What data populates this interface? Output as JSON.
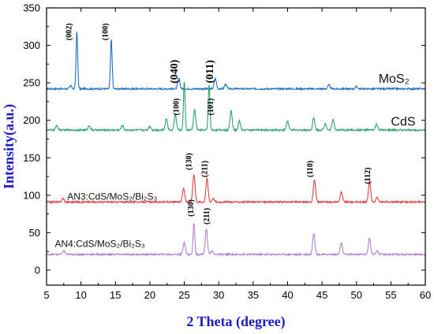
{
  "chart_data": {
    "type": "line",
    "title": "",
    "xlabel": "2 Theta (degree)",
    "ylabel": "Intensity(a.u.)",
    "xlim": [
      5,
      60
    ],
    "ylim": [
      -20,
      350
    ],
    "xticks": [
      "5",
      "10",
      "15",
      "20",
      "25",
      "30",
      "35",
      "40",
      "45",
      "50",
      "55",
      "60"
    ],
    "yticks": [
      "0",
      "50",
      "100",
      "150",
      "200",
      "250",
      "300",
      "350"
    ],
    "grid": false,
    "series": [
      {
        "name": "MoS₂",
        "color": "#1f6fc4",
        "baseline": 242,
        "peaks": [
          [
            8.5,
            4
          ],
          [
            9.4,
            76
          ],
          [
            14.4,
            66
          ],
          [
            24.2,
            14
          ],
          [
            29.5,
            14
          ],
          [
            31.0,
            6
          ],
          [
            46.0,
            5
          ],
          [
            50.0,
            3
          ]
        ]
      },
      {
        "name": "CdS",
        "color": "#2aa36a",
        "baseline": 187,
        "peaks": [
          [
            6.5,
            6
          ],
          [
            11.2,
            6
          ],
          [
            16.0,
            6
          ],
          [
            20.0,
            5
          ],
          [
            22.4,
            15
          ],
          [
            23.7,
            21
          ],
          [
            25.0,
            64
          ],
          [
            26.5,
            27
          ],
          [
            28.6,
            61
          ],
          [
            31.8,
            26
          ],
          [
            33.0,
            12
          ],
          [
            40.0,
            12
          ],
          [
            43.8,
            16
          ],
          [
            45.5,
            9
          ],
          [
            46.6,
            14
          ],
          [
            52.9,
            8
          ]
        ]
      },
      {
        "name": "AN3:CdS/MoS₂/Bi₂S₃",
        "color": "#e04040",
        "baseline": 91,
        "peaks": [
          [
            7.4,
            5
          ],
          [
            24.9,
            19
          ],
          [
            26.4,
            37
          ],
          [
            28.3,
            31
          ],
          [
            29.2,
            5
          ],
          [
            43.9,
            30
          ],
          [
            47.8,
            13
          ],
          [
            51.9,
            28
          ],
          [
            53.0,
            6
          ]
        ]
      },
      {
        "name": "AN4:CdS/MoS₂/Bi₂S₃",
        "color": "#b083cc",
        "baseline": 21,
        "peaks": [
          [
            7.5,
            5
          ],
          [
            25.0,
            17
          ],
          [
            26.4,
            43
          ],
          [
            28.2,
            34
          ],
          [
            29.0,
            5
          ],
          [
            43.8,
            29
          ],
          [
            47.8,
            15
          ],
          [
            51.9,
            22
          ],
          [
            53.0,
            5
          ]
        ]
      }
    ],
    "annotations": [
      {
        "text": "(002)",
        "x": 8.6,
        "y": 318,
        "size": 10,
        "rot": -90
      },
      {
        "text": "(100)",
        "x": 13.9,
        "y": 318,
        "size": 10,
        "rot": -90
      },
      {
        "text": "(040)",
        "x": 24.0,
        "y": 265,
        "size": 14,
        "rot": -90
      },
      {
        "text": "(011)",
        "x": 29.2,
        "y": 265,
        "size": 14,
        "rot": -90
      },
      {
        "text": "(100)",
        "x": 24.2,
        "y": 218,
        "size": 10,
        "rot": -90
      },
      {
        "text": "(101)",
        "x": 29.2,
        "y": 218,
        "size": 10,
        "rot": -90
      },
      {
        "text": "(130)",
        "x": 26.0,
        "y": 145,
        "size": 10,
        "rot": -90
      },
      {
        "text": "(211)",
        "x": 28.3,
        "y": 135,
        "size": 10,
        "rot": -90
      },
      {
        "text": "(110)",
        "x": 43.6,
        "y": 135,
        "size": 10,
        "rot": -90
      },
      {
        "text": "(112)",
        "x": 52.0,
        "y": 126,
        "size": 10,
        "rot": -90
      },
      {
        "text": "(130)",
        "x": 26.3,
        "y": 83,
        "size": 10,
        "rot": -90
      },
      {
        "text": "(211)",
        "x": 28.6,
        "y": 72,
        "size": 10,
        "rot": -90
      }
    ],
    "series_labels": [
      {
        "text": "MoS₂",
        "x": 53.2,
        "y": 250,
        "size": 16
      },
      {
        "text": "CdS",
        "x": 55.0,
        "y": 193,
        "size": 16
      },
      {
        "text": "AN3:CdS/MoS₂/Bi₂S₃",
        "x": 8.0,
        "y": 94,
        "size": 12
      },
      {
        "text": "AN4:CdS/MoS₂/Bi₂S₃",
        "x": 6.2,
        "y": 31,
        "size": 12
      }
    ]
  }
}
